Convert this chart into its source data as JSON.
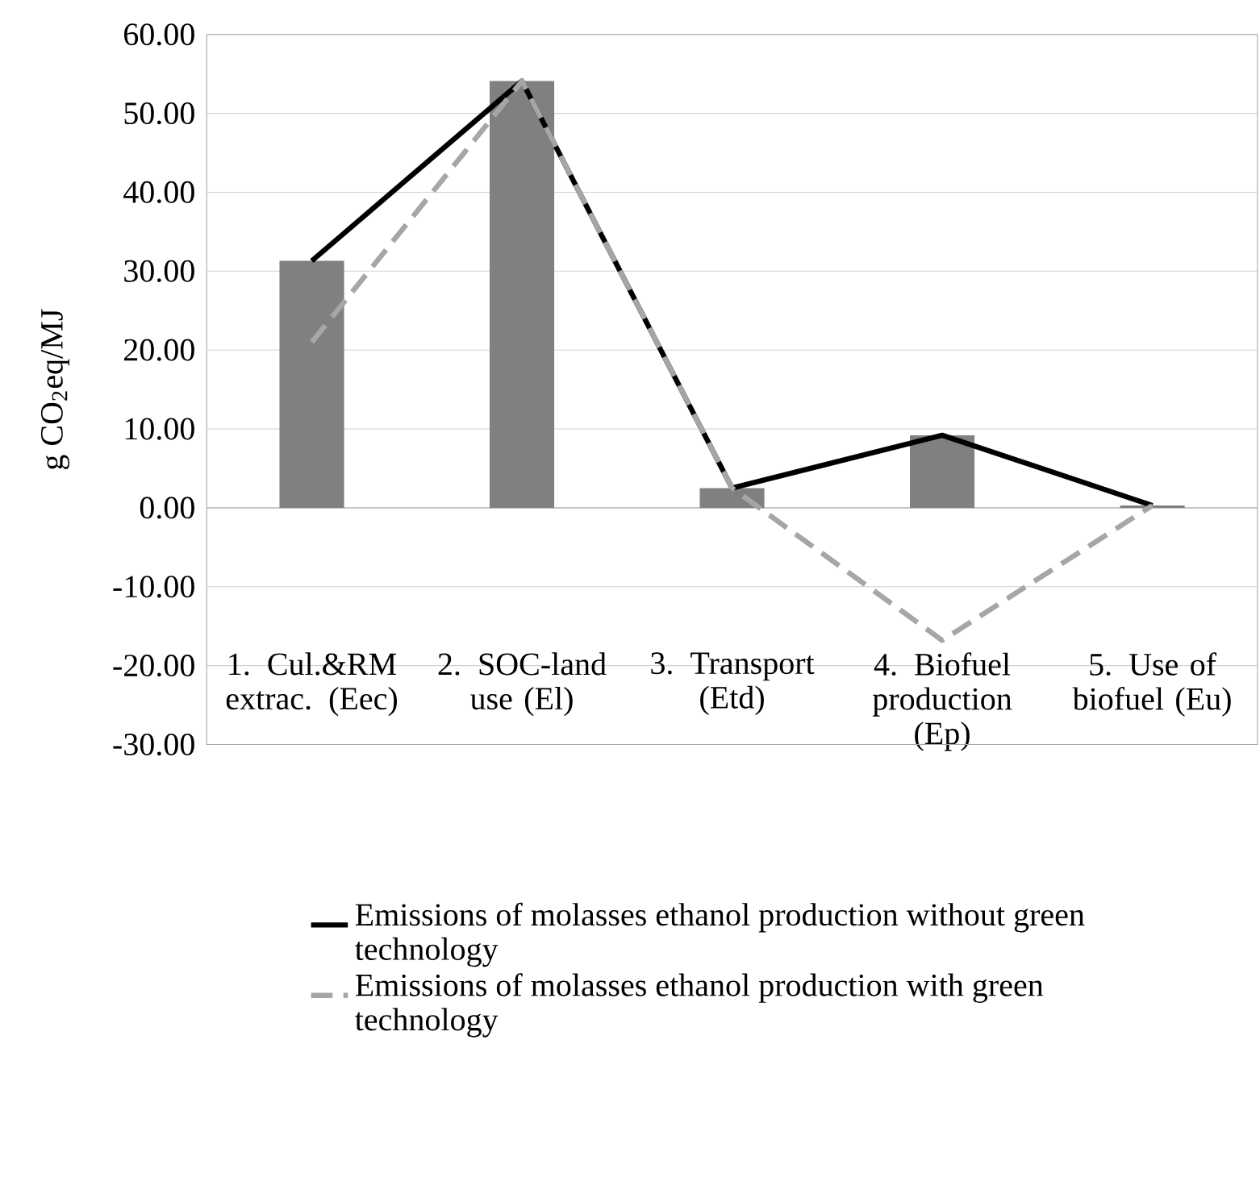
{
  "chart_data": {
    "type": "bar",
    "ylabel": "g CO$_{2}$eq/MJ",
    "categories": [
      "1. Cul.&RM extrac. (Eec)",
      "2. SOC-land use (El)",
      "3. Transport (Etd)",
      "4. Biofuel production (Ep)",
      "5. Use of biofuel (Eu)"
    ],
    "series": [
      {
        "color": "#808080",
        "values": [
          31.3,
          54.1,
          2.5,
          9.2,
          0.3
        ]
      },
      {
        "type": "line",
        "name": "Emissions of molasses ethanol production without green technology",
        "color": "#000000",
        "line_style": "solid",
        "values": [
          31.3,
          54.1,
          2.5,
          9.2,
          0.3
        ]
      },
      {
        "type": "line",
        "name": "Emissions of molasses ethanol production with green technology",
        "color": "#a6a6a6",
        "line_style": "dashed",
        "values": [
          21.0,
          54.1,
          2.5,
          -16.8,
          0.3
        ]
      }
    ],
    "ylim": [
      -30,
      60
    ],
    "yticks": [
      {
        "value": -30,
        "label": "-30.00"
      },
      {
        "value": -20,
        "label": "-20.00"
      },
      {
        "value": -10,
        "label": "-10.00"
      },
      {
        "value": 0,
        "label": "0.00"
      },
      {
        "value": 10,
        "label": "10.00"
      },
      {
        "value": 20,
        "label": "20.00"
      },
      {
        "value": 30,
        "label": "30.00"
      },
      {
        "value": 40,
        "label": "40.00"
      },
      {
        "value": 50,
        "label": "50.00"
      },
      {
        "value": 60,
        "label": "60.00"
      }
    ],
    "grid": "y",
    "legend": "bottom",
    "marker": "none"
  }
}
